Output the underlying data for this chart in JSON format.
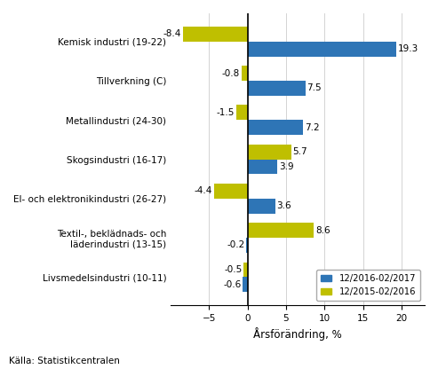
{
  "categories": [
    "Kemisk industri (19-22)",
    "Tillverkning (C)",
    "Metallindustri (24-30)",
    "Skogsindustri (16-17)",
    "El- och elektronikindustri (26-27)",
    "Textil-, beklädnads- och\nläderindustri (13-15)",
    "Livsmedelsindustri (10-11)"
  ],
  "series1_values": [
    19.3,
    7.5,
    7.2,
    3.9,
    3.6,
    -0.2,
    -0.6
  ],
  "series2_values": [
    -8.4,
    -0.8,
    -1.5,
    5.7,
    -4.4,
    8.6,
    -0.5
  ],
  "series1_label": "12/2016-02/2017",
  "series2_label": "12/2015-02/2016",
  "series1_color": "#2E75B6",
  "series2_color": "#BFBF00",
  "xlabel": "Årsförändring, %",
  "source": "Källa: Statistikcentralen",
  "xlim": [
    -10,
    23
  ],
  "xticks": [
    -5,
    0,
    5,
    10,
    15,
    20
  ],
  "bar_height": 0.38,
  "annotation_fontsize": 7.5,
  "label_fontsize": 7.5,
  "xlabel_fontsize": 8.5,
  "source_fontsize": 7.5
}
